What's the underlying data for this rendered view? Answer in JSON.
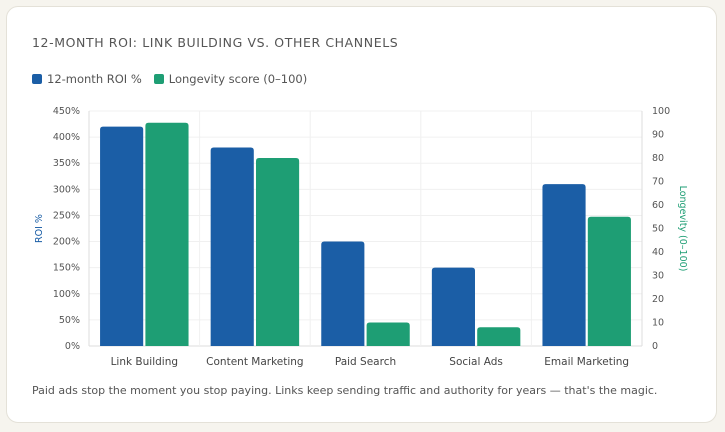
{
  "chart_data": {
    "type": "bar",
    "title": "12-MONTH ROI: LINK BUILDING VS. OTHER CHANNELS",
    "categories": [
      "Link Building",
      "Content Marketing",
      "Paid Search",
      "Social Ads",
      "Email Marketing"
    ],
    "series": [
      {
        "name": "12-month ROI %",
        "values": [
          420,
          380,
          200,
          150,
          310
        ],
        "color": "#1b5ea6",
        "axis": "left"
      },
      {
        "name": "Longevity score (0–100)",
        "values": [
          95,
          80,
          10,
          8,
          55
        ],
        "color": "#1e9e74",
        "axis": "right"
      }
    ],
    "ylabel": "ROI %",
    "y2label": "Longevity (0–100)",
    "ylim": [
      0,
      450
    ],
    "y2lim": [
      0,
      100
    ],
    "yticks": [
      "0%",
      "50%",
      "100%",
      "150%",
      "200%",
      "250%",
      "300%",
      "350%",
      "400%",
      "450%"
    ],
    "y2ticks": [
      "0",
      "10",
      "20",
      "30",
      "40",
      "50",
      "60",
      "70",
      "80",
      "90",
      "100"
    ],
    "grid": true,
    "legend": "top-left"
  },
  "footnote": "Paid ads stop the moment you stop paying. Links keep sending traffic and authority for years — that's the magic."
}
